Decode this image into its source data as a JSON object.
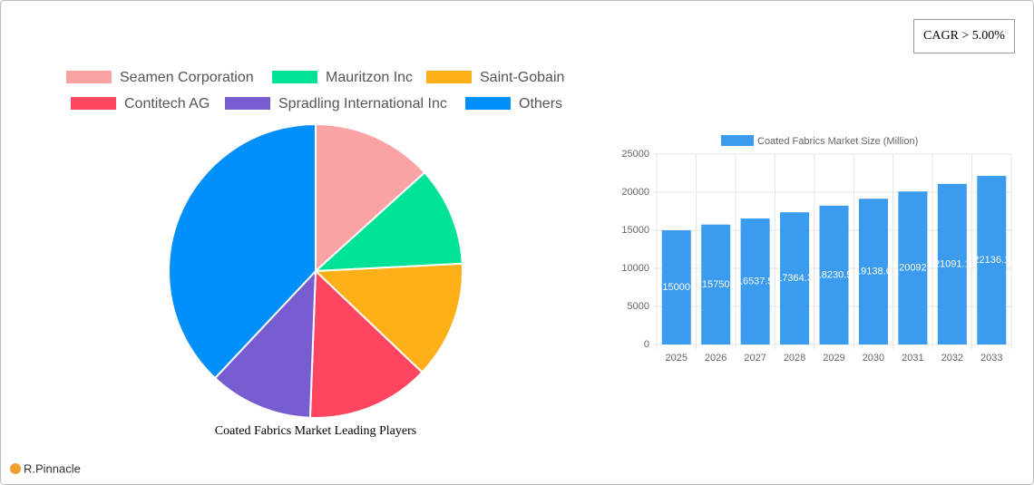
{
  "badge": "CAGR > 5.00%",
  "brand": "R.Pinnacle",
  "chart_data": [
    {
      "type": "pie",
      "title": "Coated Fabrics Market Leading Players",
      "categories": [
        "Seamen Corporation",
        "Mauritzon Inc",
        "Saint-Gobain",
        "Contitech AG",
        "Spradling International Inc",
        "Others"
      ],
      "values": [
        13.3,
        10.9,
        12.9,
        13.5,
        11.4,
        38.0
      ],
      "colors": [
        "#f9a3a4",
        "#00e396",
        "#feb019",
        "#ff4560",
        "#775dd0",
        "#008ffb"
      ]
    },
    {
      "type": "bar",
      "categories": [
        "2025",
        "2026",
        "2027",
        "2028",
        "2029",
        "2030",
        "2031",
        "2032",
        "2033"
      ],
      "series": [
        {
          "name": "Coated Fabrics Market Size (Million)",
          "color": "#3a9bef",
          "values": [
            15000,
            15750,
            16537.5,
            17364.3,
            18230.5,
            19138.6,
            20092.0,
            21091.1,
            22136.1
          ]
        }
      ],
      "ylim": [
        0,
        25000
      ],
      "yticks": [
        0,
        5000,
        10000,
        15000,
        20000,
        25000
      ],
      "grid": true
    }
  ]
}
